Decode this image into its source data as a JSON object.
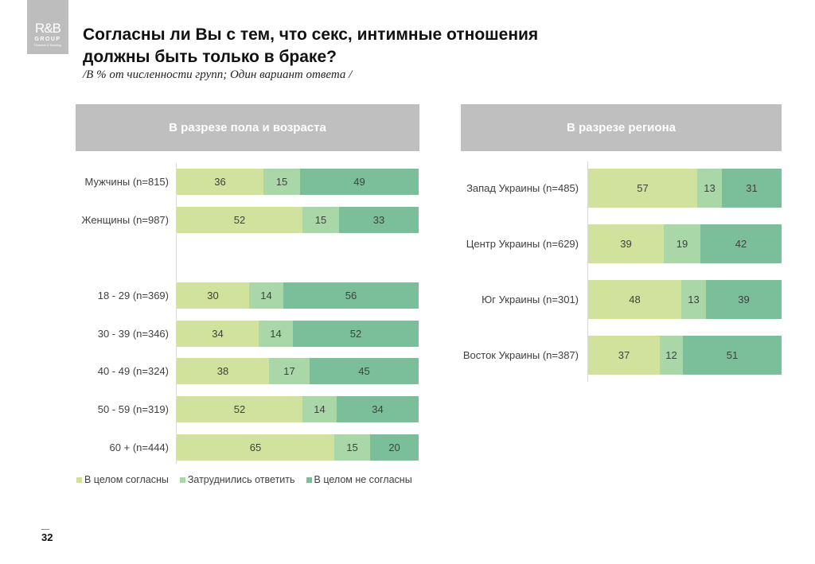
{
  "logo": {
    "mark": "R&B",
    "name": "GROUP",
    "tagline": "Research & Branding"
  },
  "title_line1": "Согласны ли Вы с тем, что секс, интимные отношения",
  "title_line2": "должны быть только в браке?",
  "subtitle": "/В % от численности групп; Один вариант ответа /",
  "page_number": "32",
  "colors": {
    "agree": "#d0e29c",
    "unsure": "#a9d7a8",
    "disagree": "#7bbf9a",
    "header": "#bfbfbf"
  },
  "chart_data": [
    {
      "type": "bar",
      "stacked": true,
      "orientation": "horizontal",
      "title": "В разрезе пола и возраста",
      "categories": [
        "Мужчины (n=815)",
        "Женщины (n=987)",
        "18 - 29 (n=369)",
        "30 - 39 (n=346)",
        "40 - 49 (n=324)",
        "50 - 59 (n=319)",
        "60 + (n=444)"
      ],
      "series": [
        {
          "name": "В целом согласны",
          "values": [
            36,
            52,
            30,
            34,
            38,
            52,
            65
          ]
        },
        {
          "name": "Затруднились ответить",
          "values": [
            15,
            15,
            14,
            14,
            17,
            14,
            15
          ]
        },
        {
          "name": "В целом не согласны",
          "values": [
            49,
            33,
            56,
            52,
            45,
            34,
            20
          ]
        }
      ],
      "xlim": [
        0,
        100
      ],
      "legend": "bottom"
    },
    {
      "type": "bar",
      "stacked": true,
      "orientation": "horizontal",
      "title": "В разрезе региона",
      "categories": [
        "Запад Украины (n=485)",
        "Центр Украины (n=629)",
        "Юг Украины (n=301)",
        "Восток Украины (n=387)"
      ],
      "series": [
        {
          "name": "В целом согласны",
          "values": [
            57,
            39,
            48,
            37
          ]
        },
        {
          "name": "Затруднились ответить",
          "values": [
            13,
            19,
            13,
            12
          ]
        },
        {
          "name": "В целом не согласны",
          "values": [
            31,
            42,
            39,
            51
          ]
        }
      ],
      "xlim": [
        0,
        100
      ]
    }
  ],
  "legend": [
    "В целом согласны",
    "Затруднились ответить",
    "В целом не согласны"
  ]
}
